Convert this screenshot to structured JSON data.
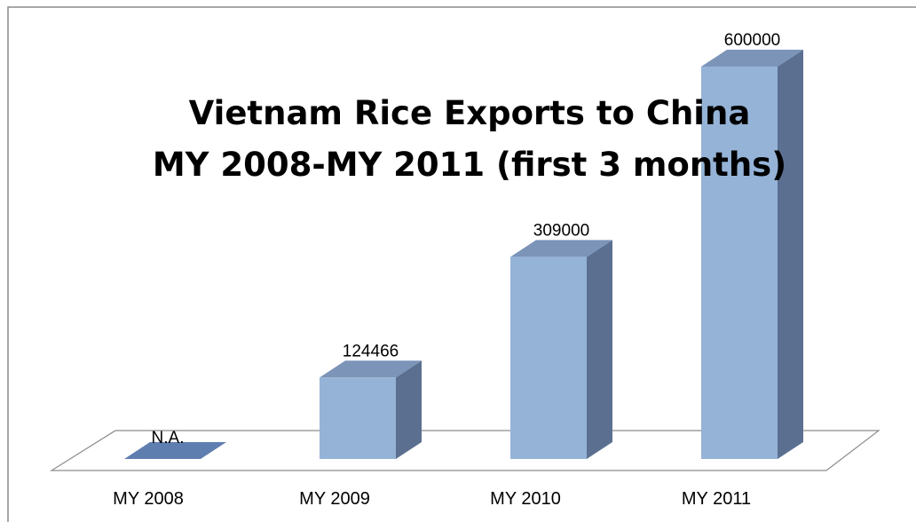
{
  "colors": {
    "bar_front": "#95b3d7",
    "bar_side": "#5b7091",
    "bar_top": "#7b94b8",
    "flat_bar": "#5f7eb0",
    "border": "#8c8c8c",
    "floor": "#ffffff"
  },
  "chart_data": {
    "type": "bar",
    "title_line1": "Vietnam Rice Exports to China",
    "title_line2": "MY 2008-MY 2011 (first 3 months)",
    "categories": [
      "MY 2008",
      "MY 2009",
      "MY 2010",
      "MY 2011"
    ],
    "values": [
      null,
      124466,
      309000,
      600000
    ],
    "data_labels": [
      "N.A.",
      "124466",
      "309000",
      "600000"
    ],
    "ylim": [
      0,
      600000
    ],
    "grid": false,
    "legend": "none",
    "style": "3d-column"
  }
}
